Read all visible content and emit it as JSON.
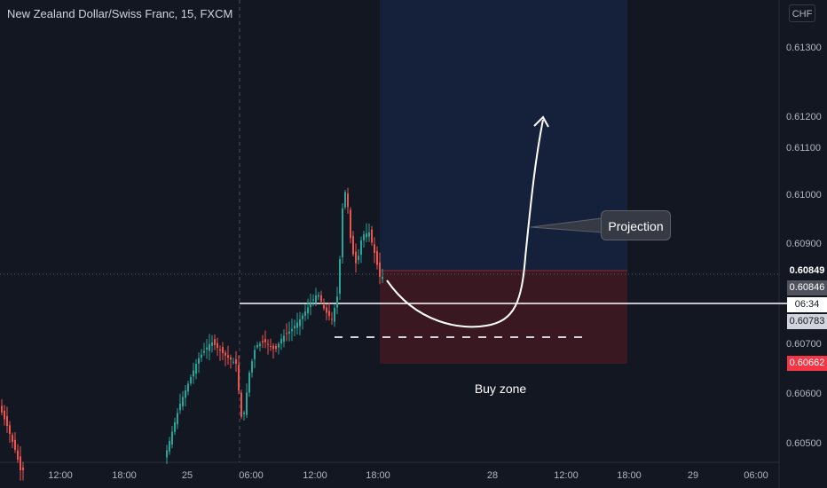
{
  "symbol_title": "New Zealand Dollar/Swiss Franc, 15, FXCM",
  "currency": "CHF",
  "price_scale": [
    "0.61300",
    "0.61200",
    "0.61100",
    "0.61000",
    "0.60900",
    "0.60700",
    "0.60600",
    "0.60500"
  ],
  "time_axis": [
    "12:00",
    "18:00",
    "25",
    "06:00",
    "12:00",
    "18:00",
    "28",
    "12:00",
    "18:00",
    "29",
    "06:00"
  ],
  "price_labels": {
    "position_top": "0.60849",
    "last_price": "0.60846",
    "countdown": "06:34",
    "level_line": "0.60783",
    "stop_level": "0.60662"
  },
  "annotations": {
    "callout": "Projection",
    "zone_label": "Buy zone"
  },
  "colors": {
    "background": "#131722",
    "bull": "#26a69a",
    "bear": "#ef5350",
    "target_zone": "#1b2a4a",
    "stop_zone": "#3b1a25",
    "stop_label": "#f23645"
  }
}
